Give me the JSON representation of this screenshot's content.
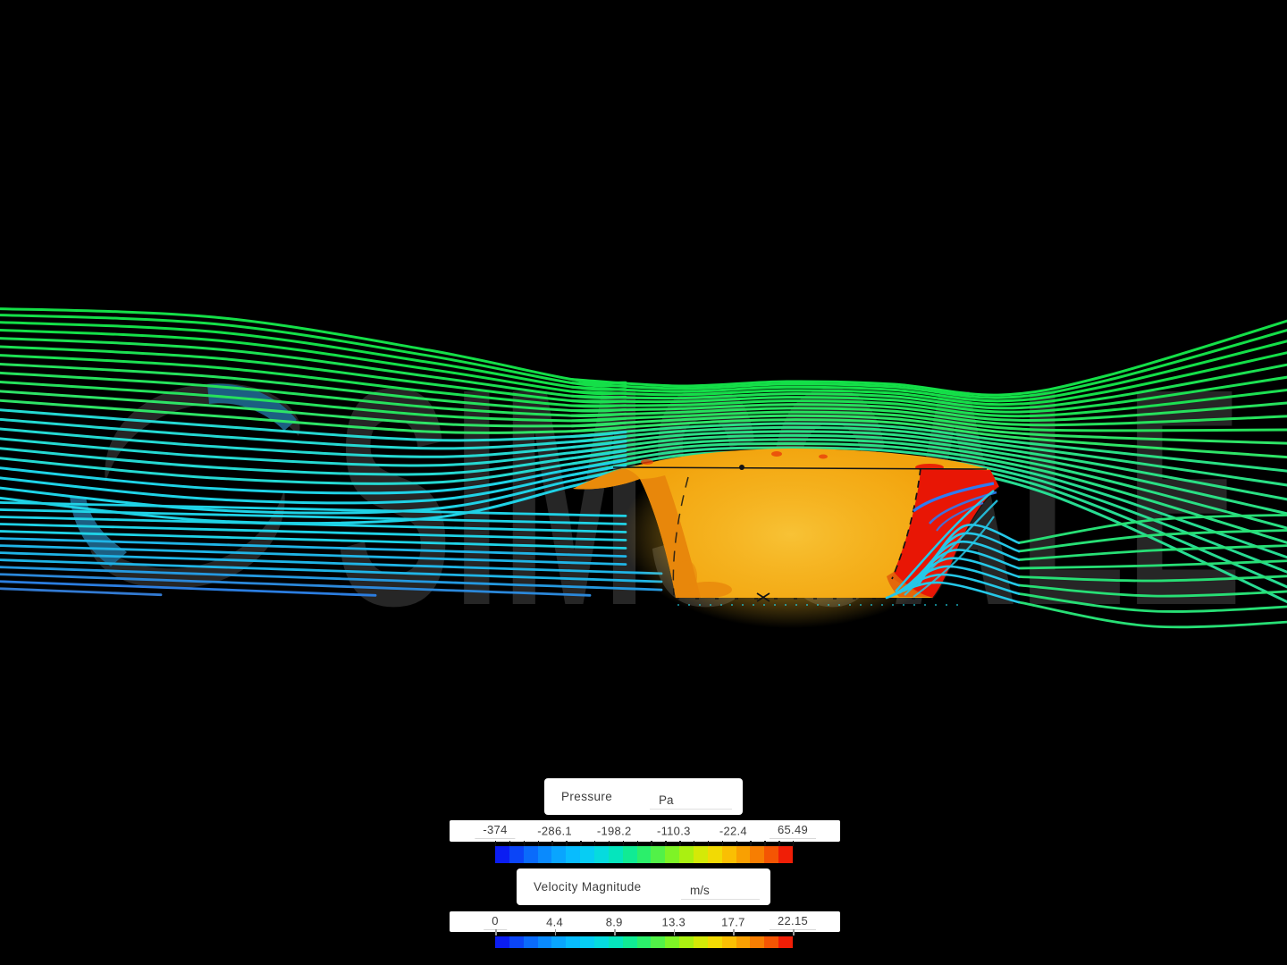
{
  "watermark": {
    "text": "SIMSCALE"
  },
  "legend_pressure": {
    "title": "Pressure",
    "unit": "Pa",
    "tick_labels": [
      "-374",
      "-286.1",
      "-198.2",
      "-110.3",
      "-22.4",
      "65.49"
    ]
  },
  "legend_velocity": {
    "title": "Velocity Magnitude",
    "unit": "m/s",
    "tick_labels": [
      "0",
      "4.4",
      "8.9",
      "13.3",
      "17.7",
      "22.15"
    ]
  },
  "colormap": [
    "#0b1df2",
    "#0b45f7",
    "#0a6bfb",
    "#0a8afd",
    "#09a5fe",
    "#08bcfe",
    "#07cdf3",
    "#06dbde",
    "#05e5bd",
    "#10eb94",
    "#2bef6b",
    "#52f148",
    "#7ef326",
    "#aaf011",
    "#d4e907",
    "#f2da04",
    "#fabf03",
    "#f9a002",
    "#f77e02",
    "#f45503",
    "#f01e06"
  ],
  "colors": {
    "background": "#000000",
    "watermark_gray": "#262626",
    "watermark_blue": "#1c5f82",
    "stream_green": "#14df48",
    "stream_green_soft": "#2ee366",
    "stream_teal": "#25d8d2",
    "stream_cyan": "#1fd2e6",
    "stream_sky": "#1fb4e6",
    "stream_blue": "#2b7de0",
    "vortex_blue": "#2e7bf2",
    "wake_cyan": "#25c8e8",
    "wake_green": "#27df75",
    "car_orange": "#f2a30d",
    "car_orange_light": "#f7c032",
    "car_pillar": "#e8870b",
    "car_dark_orange": "#e2600a",
    "car_red": "#e81605",
    "outline_black": "#141414",
    "legend_bg": "#ffffff",
    "legend_text": "#3c3c3c",
    "tick_mark": "#111111",
    "tick_mark_gray": "#9a9a9a",
    "underline": "#e0e0e0"
  }
}
